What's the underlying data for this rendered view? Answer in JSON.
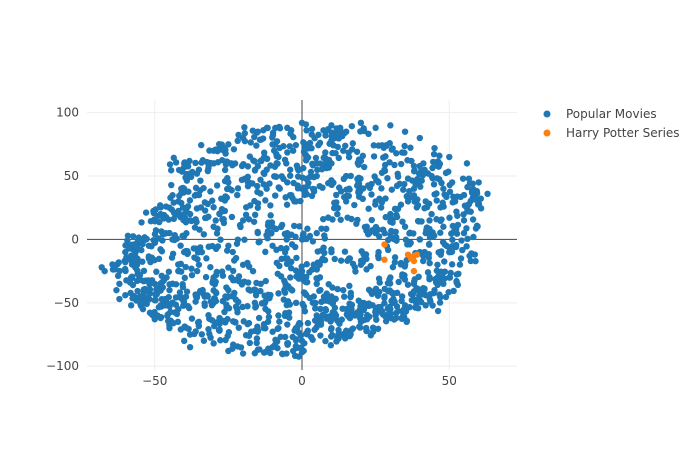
{
  "chart_data": {
    "type": "scatter",
    "title": "",
    "xlabel": "",
    "ylabel": "",
    "xlim": [
      -73,
      73
    ],
    "ylim": [
      -103,
      110
    ],
    "x_ticks": [
      -50,
      0,
      50
    ],
    "y_ticks": [
      -100,
      -50,
      0,
      50,
      100
    ],
    "x_tick_labels": [
      "−50",
      "0",
      "50"
    ],
    "y_tick_labels": [
      "−100",
      "−50",
      "0",
      "50",
      "100"
    ],
    "grid": true,
    "zero_lines": true,
    "legend_position": "top-right",
    "series": [
      {
        "name": "Popular Movies",
        "color": "#1f77b4",
        "points": [
          [
            -68,
            -22
          ],
          [
            -67,
            -25
          ],
          [
            -63,
            -40
          ],
          [
            -62,
            -47
          ],
          [
            -60,
            -44
          ],
          [
            -57,
            -4
          ],
          [
            -55,
            -3
          ],
          [
            -52,
            -5
          ],
          [
            -60,
            -18
          ],
          [
            -55,
            -28
          ],
          [
            -50,
            -63
          ],
          [
            -48,
            -52
          ],
          [
            -45,
            -70
          ],
          [
            -50,
            15
          ],
          [
            -45,
            25
          ],
          [
            -42,
            30
          ],
          [
            -40,
            40
          ],
          [
            -38,
            52
          ],
          [
            -35,
            55
          ],
          [
            -30,
            60
          ],
          [
            -40,
            -10
          ],
          [
            -35,
            -20
          ],
          [
            -30,
            -30
          ],
          [
            -25,
            -40
          ],
          [
            -30,
            10
          ],
          [
            -28,
            20
          ],
          [
            -22,
            35
          ],
          [
            -18,
            45
          ],
          [
            -12,
            55
          ],
          [
            -8,
            65
          ],
          [
            -3,
            70
          ],
          [
            2,
            75
          ],
          [
            0,
            92
          ],
          [
            -5,
            88
          ],
          [
            8,
            82
          ],
          [
            10,
            90
          ],
          [
            -20,
            80
          ],
          [
            -15,
            85
          ],
          [
            -25,
            75
          ],
          [
            -40,
            -80
          ],
          [
            -38,
            -85
          ],
          [
            -30,
            -82
          ],
          [
            -25,
            -88
          ],
          [
            -20,
            -90
          ],
          [
            -15,
            -87
          ],
          [
            -10,
            -85
          ],
          [
            -5,
            -82
          ],
          [
            0,
            -80
          ],
          [
            -3,
            -88
          ],
          [
            5,
            -60
          ],
          [
            10,
            -70
          ],
          [
            12,
            -78
          ],
          [
            15,
            -72
          ],
          [
            20,
            -65
          ],
          [
            25,
            -60
          ],
          [
            30,
            -55
          ],
          [
            32,
            -58
          ],
          [
            35,
            -52
          ],
          [
            40,
            -48
          ],
          [
            42,
            -44
          ],
          [
            45,
            -40
          ],
          [
            48,
            -35
          ],
          [
            50,
            -30
          ],
          [
            52,
            -5
          ],
          [
            55,
            5
          ],
          [
            55,
            15
          ],
          [
            56,
            25
          ],
          [
            55,
            35
          ],
          [
            58,
            44
          ],
          [
            63,
            36
          ],
          [
            60,
            45
          ],
          [
            56,
            60
          ],
          [
            50,
            65
          ],
          [
            45,
            72
          ],
          [
            40,
            80
          ],
          [
            35,
            85
          ],
          [
            30,
            90
          ],
          [
            25,
            88
          ],
          [
            20,
            92
          ],
          [
            15,
            85
          ],
          [
            10,
            78
          ],
          [
            40,
            0
          ],
          [
            35,
            10
          ],
          [
            30,
            20
          ],
          [
            25,
            30
          ],
          [
            20,
            40
          ],
          [
            15,
            50
          ],
          [
            10,
            60
          ],
          [
            40,
            -10
          ],
          [
            35,
            -20
          ],
          [
            30,
            -30
          ],
          [
            25,
            -40
          ],
          [
            20,
            -50
          ],
          [
            15,
            -55
          ],
          [
            10,
            -45
          ],
          [
            5,
            -35
          ],
          [
            0,
            -25
          ],
          [
            -5,
            -15
          ],
          [
            -10,
            -5
          ],
          [
            -15,
            5
          ],
          [
            -20,
            15
          ],
          [
            0,
            0
          ],
          [
            5,
            5
          ],
          [
            -5,
            5
          ],
          [
            10,
            -10
          ],
          [
            -10,
            10
          ],
          [
            0,
            40
          ],
          [
            5,
            50
          ],
          [
            -5,
            45
          ],
          [
            15,
            30
          ],
          [
            -15,
            25
          ],
          [
            20,
            -20
          ],
          [
            -20,
            -20
          ],
          [
            -25,
            -5
          ],
          [
            25,
            5
          ],
          [
            -45,
            -40
          ],
          [
            -50,
            -35
          ],
          [
            -55,
            -45
          ],
          [
            -42,
            -55
          ],
          [
            -35,
            -65
          ],
          [
            -28,
            -72
          ],
          [
            -18,
            -76
          ],
          [
            -8,
            -70
          ],
          [
            2,
            -66
          ],
          [
            -45,
            5
          ],
          [
            -38,
            15
          ],
          [
            -32,
            28
          ],
          [
            -48,
            20
          ],
          [
            44,
            50
          ],
          [
            48,
            40
          ],
          [
            38,
            58
          ],
          [
            32,
            68
          ],
          [
            26,
            74
          ],
          [
            20,
            62
          ],
          [
            14,
            70
          ],
          [
            8,
            64
          ],
          [
            44,
            20
          ],
          [
            48,
            10
          ],
          [
            42,
            30
          ],
          [
            38,
            40
          ],
          [
            46,
            -20
          ],
          [
            50,
            -10
          ],
          [
            38,
            -35
          ],
          [
            28,
            -45
          ],
          [
            18,
            -60
          ],
          [
            8,
            -55
          ],
          [
            -2,
            -50
          ],
          [
            -12,
            -45
          ],
          [
            -22,
            -55
          ],
          [
            -32,
            -45
          ],
          [
            -42,
            -25
          ],
          [
            -52,
            -15
          ],
          [
            -58,
            -30
          ],
          [
            -62,
            -35
          ],
          [
            -35,
            35
          ],
          [
            -25,
            45
          ],
          [
            -12,
            40
          ],
          [
            -2,
            30
          ],
          [
            12,
            20
          ],
          [
            22,
            10
          ],
          [
            32,
            0
          ],
          [
            42,
            5
          ],
          [
            -40,
            60
          ],
          [
            -30,
            70
          ],
          [
            -10,
            75
          ],
          [
            5,
            60
          ],
          [
            28,
            55
          ],
          [
            36,
            30
          ],
          [
            26,
            -10
          ],
          [
            16,
            -15
          ],
          [
            6,
            -20
          ],
          [
            -4,
            -30
          ],
          [
            -14,
            -35
          ],
          [
            -24,
            -30
          ],
          [
            -34,
            -10
          ],
          [
            -44,
            -50
          ],
          [
            -54,
            -55
          ],
          [
            -48,
            -62
          ],
          [
            -38,
            -75
          ],
          [
            -28,
            -62
          ],
          [
            -18,
            -66
          ],
          [
            -8,
            -60
          ],
          [
            2,
            -72
          ],
          [
            12,
            -64
          ],
          [
            22,
            -72
          ],
          [
            32,
            -62
          ],
          [
            42,
            -52
          ],
          [
            -60,
            -10
          ],
          [
            -58,
            -52
          ],
          [
            -50,
            -48
          ],
          [
            -46,
            -30
          ],
          [
            -56,
            -20
          ],
          [
            -52,
            -40
          ],
          [
            -44,
            0
          ],
          [
            -40,
            20
          ],
          [
            -36,
            -45
          ],
          [
            -30,
            -50
          ],
          [
            -24,
            60
          ],
          [
            -14,
            62
          ],
          [
            -4,
            55
          ],
          [
            6,
            42
          ],
          [
            16,
            40
          ],
          [
            26,
            45
          ],
          [
            36,
            48
          ],
          [
            46,
            58
          ],
          [
            52,
            30
          ],
          [
            54,
            -15
          ],
          [
            46,
            -30
          ],
          [
            34,
            -45
          ],
          [
            24,
            -52
          ],
          [
            14,
            -40
          ],
          [
            4,
            -45
          ],
          [
            -6,
            -40
          ],
          [
            -16,
            -50
          ],
          [
            -26,
            -45
          ]
        ]
      },
      {
        "name": "Harry Potter Series",
        "color": "#ff7f0e",
        "points": [
          [
            28,
            -4
          ],
          [
            28,
            -16
          ],
          [
            36,
            -12
          ],
          [
            37,
            -15
          ],
          [
            38,
            -17
          ],
          [
            38,
            -13
          ],
          [
            39,
            -12
          ],
          [
            38,
            -25
          ]
        ]
      }
    ]
  }
}
